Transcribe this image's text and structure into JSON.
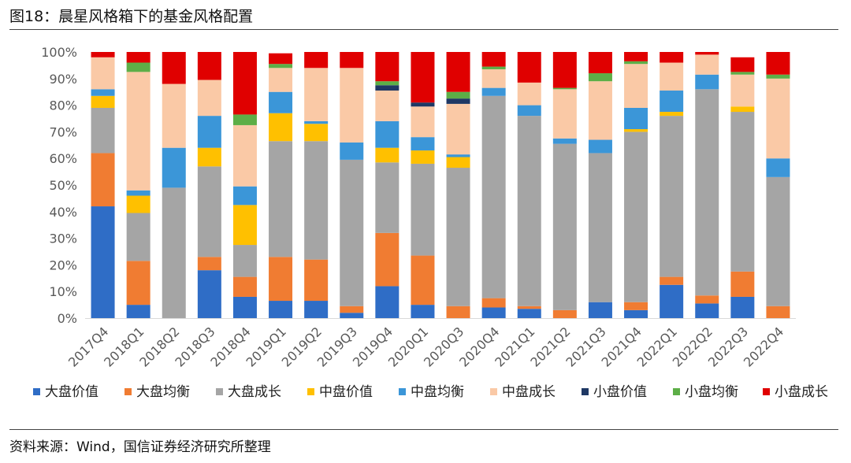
{
  "header": {
    "title": "图18：晨星风格箱下的基金风格配置"
  },
  "footer": {
    "source": "资料来源：Wind，国信证券经济研究所整理"
  },
  "chart_data": {
    "type": "bar",
    "stacked": true,
    "categories": [
      "2017Q4",
      "2018Q1",
      "2018Q2",
      "2018Q3",
      "2018Q4",
      "2019Q1",
      "2019Q2",
      "2019Q3",
      "2019Q4",
      "2020Q1",
      "2020Q3",
      "2020Q4",
      "2021Q1",
      "2021Q2",
      "2021Q3",
      "2021Q4",
      "2022Q1",
      "2022Q2",
      "2022Q3",
      "2022Q4"
    ],
    "ylim": [
      0,
      100
    ],
    "yticks": [
      "0%",
      "10%",
      "20%",
      "30%",
      "40%",
      "50%",
      "60%",
      "70%",
      "80%",
      "90%",
      "100%"
    ],
    "legend_position": "bottom",
    "series": [
      {
        "name": "大盘价值",
        "color": "#2F6DC6",
        "values": [
          42,
          5,
          0,
          18,
          8,
          6.5,
          6.5,
          2,
          12,
          5,
          0,
          4,
          3.5,
          0,
          6,
          3,
          12.5,
          5.5,
          8,
          0
        ]
      },
      {
        "name": "大盘均衡",
        "color": "#F07C32",
        "values": [
          20,
          16.5,
          0,
          5,
          7.5,
          16.5,
          15.5,
          2.5,
          20,
          18.5,
          4.5,
          3.5,
          1,
          3,
          0,
          3,
          3,
          3,
          9.5,
          4.5
        ]
      },
      {
        "name": "大盘成长",
        "color": "#A5A5A5",
        "values": [
          17,
          18,
          49,
          34,
          12,
          43.5,
          44.5,
          55,
          26.5,
          34.5,
          52,
          76,
          71.5,
          62.5,
          56,
          64,
          60.5,
          77.5,
          60,
          48.5
        ]
      },
      {
        "name": "中盘价值",
        "color": "#FFC000",
        "values": [
          4.5,
          6.5,
          0,
          7,
          15,
          10.5,
          6.5,
          0,
          5.5,
          5,
          4,
          0,
          0,
          0,
          0,
          1,
          1.5,
          0,
          2,
          0
        ]
      },
      {
        "name": "中盘均衡",
        "color": "#3B96D8",
        "values": [
          2.5,
          2,
          15,
          12,
          7,
          8,
          1,
          6.5,
          10,
          5,
          1,
          3,
          4,
          2,
          5,
          8,
          8,
          5.5,
          0,
          7
        ]
      },
      {
        "name": "中盘成长",
        "color": "#FAC9A6",
        "values": [
          12,
          44.5,
          24,
          13.5,
          23,
          9,
          20,
          28,
          11.5,
          11.5,
          19,
          7,
          8.5,
          18.5,
          22,
          16.5,
          10.5,
          7.5,
          12,
          30
        ]
      },
      {
        "name": "小盘价值",
        "color": "#1F3864",
        "values": [
          0,
          0,
          0,
          0,
          0,
          0,
          0,
          0,
          2,
          1.5,
          2,
          0,
          0,
          0,
          0,
          0,
          0,
          0,
          0,
          0
        ]
      },
      {
        "name": "小盘均衡",
        "color": "#5DAE47",
        "values": [
          0,
          3.5,
          0,
          0,
          4,
          1.5,
          0,
          0,
          1.5,
          0,
          2.5,
          1,
          0,
          0.5,
          3,
          1,
          0,
          0,
          1,
          1.5
        ]
      },
      {
        "name": "小盘成长",
        "color": "#E00000",
        "values": [
          2,
          4,
          12,
          10.5,
          23.5,
          4,
          6,
          6,
          11,
          19,
          15,
          5.5,
          11.5,
          13.5,
          8,
          3.5,
          4,
          1,
          5.5,
          8.5
        ]
      }
    ]
  }
}
